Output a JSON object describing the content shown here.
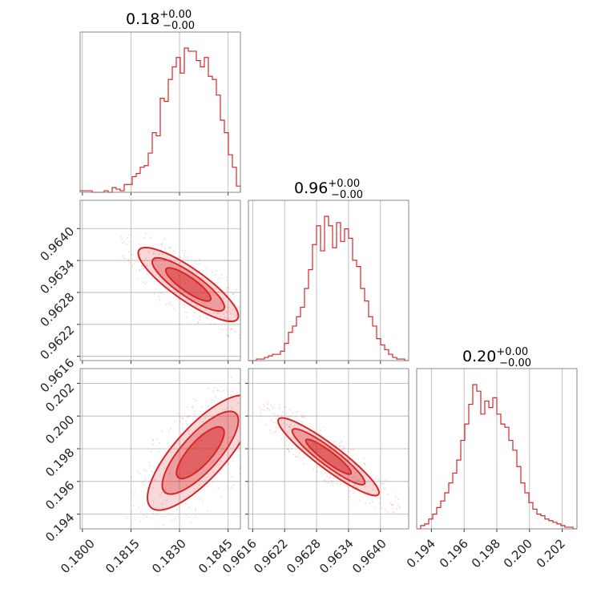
{
  "figure": {
    "type": "corner",
    "color": "#d62728",
    "grid": true,
    "titles": [
      {
        "base": "0.18",
        "sup": "+0.00",
        "sub": "−0.00"
      },
      {
        "base": "0.96",
        "sup": "+0.00",
        "sub": "−0.00"
      },
      {
        "base": "0.20",
        "sup": "+0.00",
        "sub": "−0.00"
      }
    ],
    "tick_labels": {
      "p0": [
        "0.1800",
        "0.1815",
        "0.1830",
        "0.1845"
      ],
      "p1": [
        "0.9616",
        "0.9622",
        "0.9628",
        "0.9634",
        "0.9640"
      ],
      "p2": [
        "0.194",
        "0.196",
        "0.198",
        "0.200",
        "0.202"
      ]
    }
  },
  "chart_data": {
    "type": "corner",
    "parameters": [
      {
        "index": 0,
        "range": [
          0.17993,
          0.18488
        ],
        "ticks": [
          0.18,
          0.1815,
          0.183,
          0.1845
        ]
      },
      {
        "index": 1,
        "range": [
          0.96152,
          0.96453
        ],
        "ticks": [
          0.9616,
          0.9622,
          0.9628,
          0.9634,
          0.964
        ]
      },
      {
        "index": 2,
        "range": [
          0.1931,
          0.2029
        ],
        "ticks": [
          0.194,
          0.196,
          0.198,
          0.2,
          0.202
        ]
      }
    ],
    "histograms": [
      {
        "param": 0,
        "bins": 40,
        "counts": [
          1,
          1,
          1,
          0,
          0,
          0,
          1,
          0,
          3,
          2,
          1,
          5,
          5,
          10,
          12,
          16,
          17,
          25,
          38,
          36,
          60,
          58,
          72,
          80,
          86,
          76,
          92,
          90,
          90,
          84,
          80,
          86,
          74,
          72,
          62,
          46,
          38,
          24,
          16,
          4
        ]
      },
      {
        "param": 1,
        "bins": 40,
        "counts": [
          0,
          0,
          1,
          1,
          2,
          3,
          4,
          4,
          6,
          11,
          18,
          22,
          28,
          34,
          46,
          58,
          74,
          86,
          70,
          92,
          86,
          72,
          88,
          76,
          84,
          78,
          64,
          60,
          46,
          38,
          28,
          22,
          14,
          10,
          7,
          4,
          2,
          1,
          1,
          0
        ]
      },
      {
        "param": 2,
        "bins": 40,
        "counts": [
          0,
          2,
          3,
          6,
          9,
          13,
          17,
          22,
          28,
          34,
          42,
          54,
          64,
          76,
          88,
          84,
          70,
          78,
          74,
          80,
          70,
          64,
          62,
          54,
          48,
          38,
          28,
          22,
          16,
          12,
          9,
          8,
          6,
          5,
          4,
          3,
          2,
          1,
          1,
          0
        ]
      }
    ],
    "pairs": [
      {
        "x_param": 0,
        "y_param": 1,
        "correlation": "negative",
        "levels": 3
      },
      {
        "x_param": 0,
        "y_param": 2,
        "correlation": "positive",
        "levels": 3
      },
      {
        "x_param": 1,
        "y_param": 2,
        "correlation": "negative",
        "levels": 3
      }
    ]
  }
}
